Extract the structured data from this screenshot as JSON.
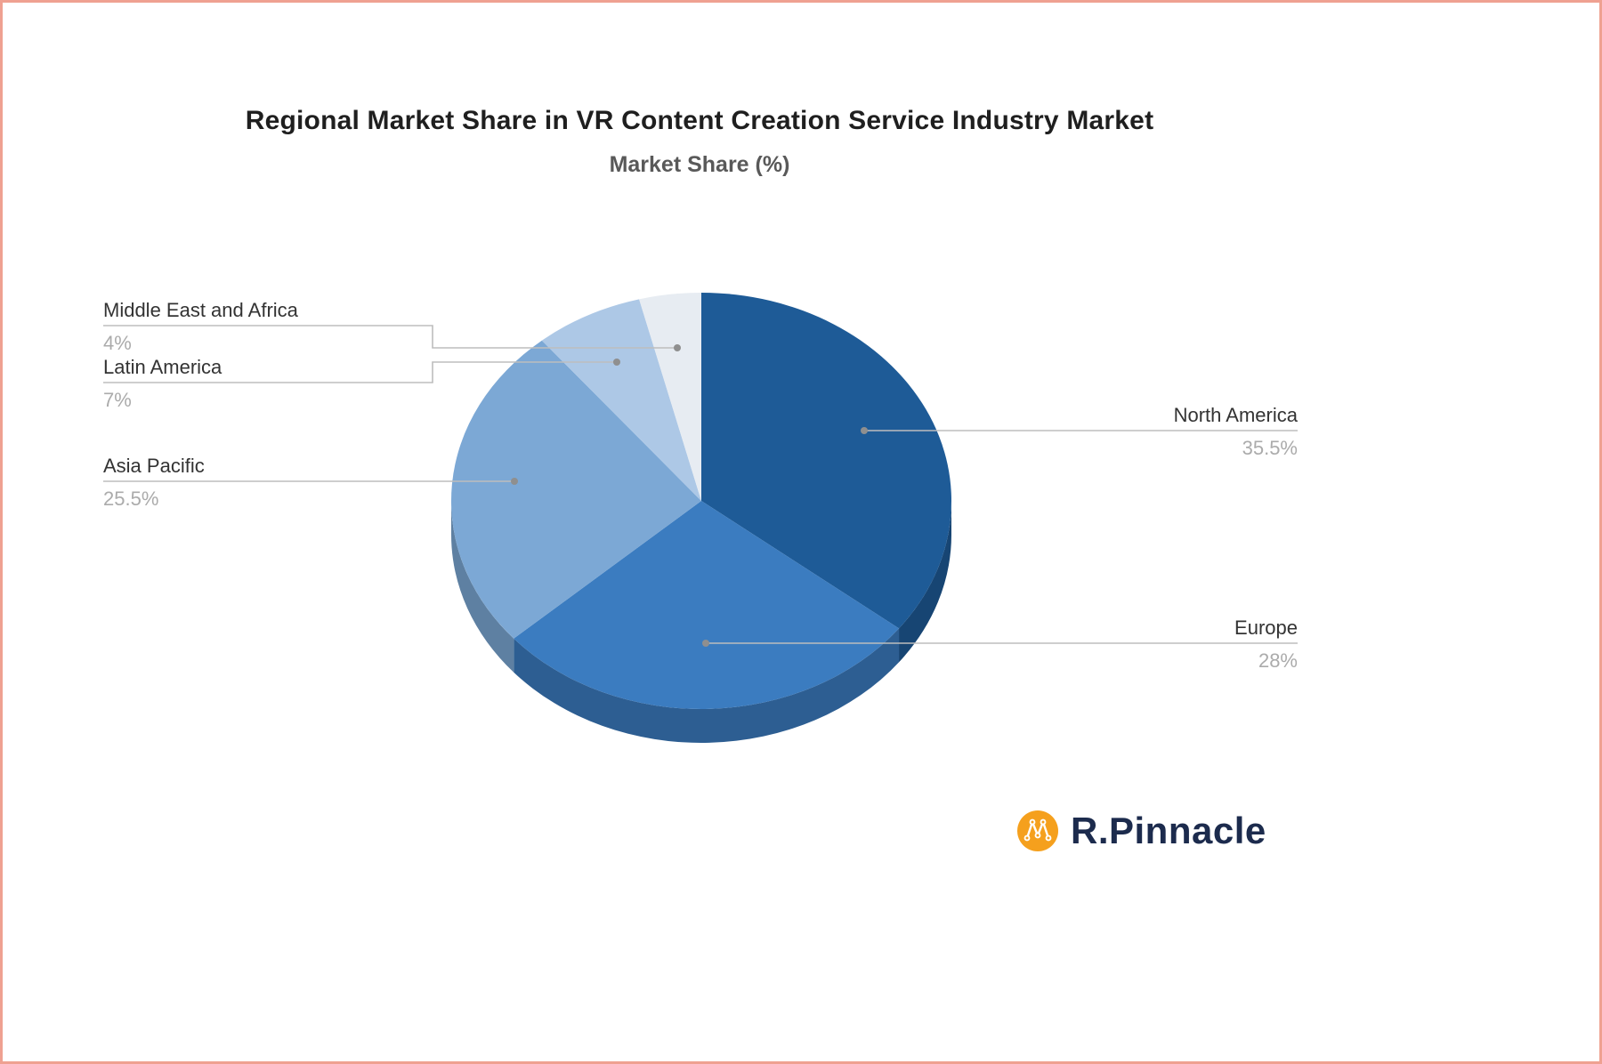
{
  "page": {
    "background_color": "#ffffff",
    "border_color": "#efa191"
  },
  "chart_data": {
    "type": "pie",
    "title": "Regional Market Share in VR Content Creation Service Industry Market",
    "subtitle": "Market Share (%)",
    "unit": "%",
    "direction": "clockwise",
    "start_angle_deg": 0,
    "depth_3d": true,
    "legend_position": "callout-labels",
    "slices": [
      {
        "label": "North America",
        "value": 35.5,
        "display": "35.5%",
        "color": "#1e5b97"
      },
      {
        "label": "Europe",
        "value": 28,
        "display": "28%",
        "color": "#3b7cc0"
      },
      {
        "label": "Asia Pacific",
        "value": 25.5,
        "display": "25.5%",
        "color": "#7ca8d5"
      },
      {
        "label": "Latin America",
        "value": 7,
        "display": "7%",
        "color": "#adc8e6"
      },
      {
        "label": "Middle East and Africa",
        "value": 4,
        "display": "4%",
        "color": "#e7ecf2"
      }
    ]
  },
  "branding": {
    "logo_text": "R.Pinnacle",
    "logo_icon": "network-nodes-icon",
    "accent_color": "#f5a01d",
    "text_color": "#1c2b4d"
  }
}
